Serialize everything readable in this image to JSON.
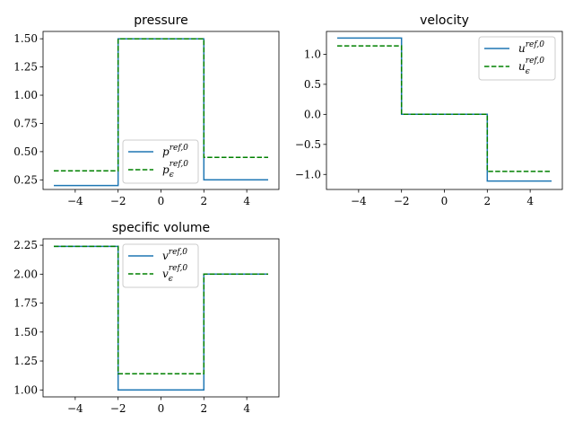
{
  "chart_data": [
    {
      "type": "line",
      "title": "pressure",
      "xlabel": "",
      "ylabel": "",
      "xlim": [
        -5.5,
        5.5
      ],
      "ylim": [
        0.165,
        1.565
      ],
      "xticks": [
        -4,
        -2,
        0,
        2,
        4
      ],
      "xtick_labels": [
        "−4",
        "−2",
        "0",
        "2",
        "4"
      ],
      "yticks": [
        0.25,
        0.5,
        0.75,
        1.0,
        1.25,
        1.5
      ],
      "ytick_labels": [
        "0.25",
        "0.50",
        "0.75",
        "1.00",
        "1.25",
        "1.50"
      ],
      "legend_position": "lower-right",
      "grid": false,
      "series": [
        {
          "name": "p^{ref,0}",
          "color": "#1f77b4",
          "style": "solid",
          "x": [
            -5,
            -2,
            -2,
            2,
            2,
            5
          ],
          "y": [
            0.2,
            0.2,
            1.5,
            1.5,
            0.25,
            0.25
          ]
        },
        {
          "name": "p_ϵ^{ref,0}",
          "color": "#008000",
          "style": "dashed",
          "x": [
            -5,
            -2,
            -2,
            2,
            2,
            5
          ],
          "y": [
            0.33,
            0.33,
            1.5,
            1.5,
            0.45,
            0.45
          ]
        }
      ]
    },
    {
      "type": "line",
      "title": "velocity",
      "xlabel": "",
      "ylabel": "",
      "xlim": [
        -5.5,
        5.5
      ],
      "ylim": [
        -1.25,
        1.38
      ],
      "xticks": [
        -4,
        -2,
        0,
        2,
        4
      ],
      "xtick_labels": [
        "−4",
        "−2",
        "0",
        "2",
        "4"
      ],
      "yticks": [
        -1.0,
        -0.5,
        0.0,
        0.5,
        1.0
      ],
      "ytick_labels": [
        "−1.0",
        "−0.5",
        "0.0",
        "0.5",
        "1.0"
      ],
      "legend_position": "upper-right",
      "grid": false,
      "series": [
        {
          "name": "u^{ref,0}",
          "color": "#1f77b4",
          "style": "solid",
          "x": [
            -5,
            -2,
            -2,
            2,
            2,
            5
          ],
          "y": [
            1.27,
            1.27,
            0.0,
            0.0,
            -1.11,
            -1.11
          ]
        },
        {
          "name": "u_ϵ^{ref,0}",
          "color": "#008000",
          "style": "dashed",
          "x": [
            -5,
            -2,
            -2,
            2,
            2,
            5
          ],
          "y": [
            1.14,
            1.14,
            0.0,
            0.0,
            -0.95,
            -0.95
          ]
        }
      ]
    },
    {
      "type": "line",
      "title": "specific volume",
      "xlabel": "",
      "ylabel": "",
      "xlim": [
        -5.5,
        5.5
      ],
      "ylim": [
        0.94,
        2.305
      ],
      "xticks": [
        -4,
        -2,
        0,
        2,
        4
      ],
      "xtick_labels": [
        "−4",
        "−2",
        "0",
        "2",
        "4"
      ],
      "yticks": [
        1.0,
        1.25,
        1.5,
        1.75,
        2.0,
        2.25
      ],
      "ytick_labels": [
        "1.00",
        "1.25",
        "1.50",
        "1.75",
        "2.00",
        "2.25"
      ],
      "legend_position": "upper-center",
      "grid": false,
      "series": [
        {
          "name": "v^{ref,0}",
          "color": "#1f77b4",
          "style": "solid",
          "x": [
            -5,
            -2,
            -2,
            2,
            2,
            5
          ],
          "y": [
            2.24,
            2.24,
            1.0,
            1.0,
            2.0,
            2.0
          ]
        },
        {
          "name": "v_ϵ^{ref,0}",
          "color": "#008000",
          "style": "dashed",
          "x": [
            -5,
            -2,
            -2,
            2,
            2,
            5
          ],
          "y": [
            2.24,
            2.24,
            1.14,
            1.14,
            2.0,
            2.0
          ]
        }
      ]
    }
  ],
  "legend_labels": [
    [
      {
        "base": "p",
        "sub": "",
        "sup": "ref,0"
      },
      {
        "base": "p",
        "sub": "ϵ",
        "sup": "ref,0"
      }
    ],
    [
      {
        "base": "u",
        "sub": "",
        "sup": "ref,0"
      },
      {
        "base": "u",
        "sub": "ϵ",
        "sup": "ref,0"
      }
    ],
    [
      {
        "base": "v",
        "sub": "",
        "sup": "ref,0"
      },
      {
        "base": "v",
        "sub": "ϵ",
        "sup": "ref,0"
      }
    ]
  ]
}
